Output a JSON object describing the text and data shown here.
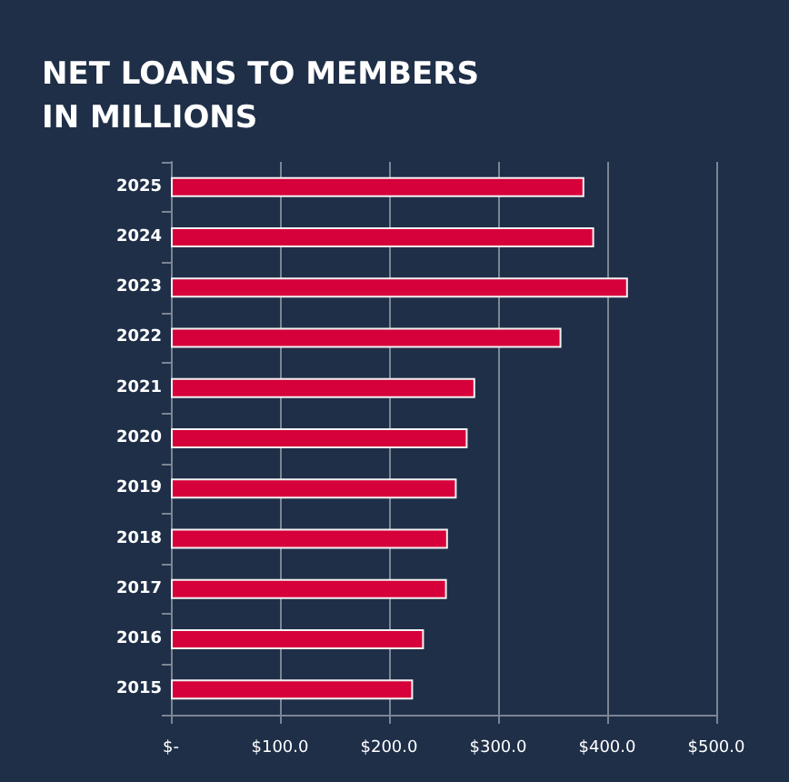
{
  "chart_data": {
    "type": "bar",
    "orientation": "horizontal",
    "title": "NET LOANS TO MEMBERS IN MILLIONS",
    "categories": [
      "2025",
      "2024",
      "2023",
      "2022",
      "2021",
      "2020",
      "2019",
      "2018",
      "2017",
      "2016",
      "2015"
    ],
    "values": [
      379,
      388,
      419,
      358,
      279,
      272,
      262,
      254,
      253,
      232,
      222
    ],
    "color": "#d6003a",
    "xlim": [
      0,
      500
    ],
    "xticks": [
      {
        "value": 0,
        "label": "$-"
      },
      {
        "value": 100,
        "label": "$100.0"
      },
      {
        "value": 200,
        "label": "$200.0"
      },
      {
        "value": 300,
        "label": "$300.0"
      },
      {
        "value": 400,
        "label": "$400.0"
      },
      {
        "value": 500,
        "label": "$500.0"
      }
    ],
    "grid": "x"
  }
}
